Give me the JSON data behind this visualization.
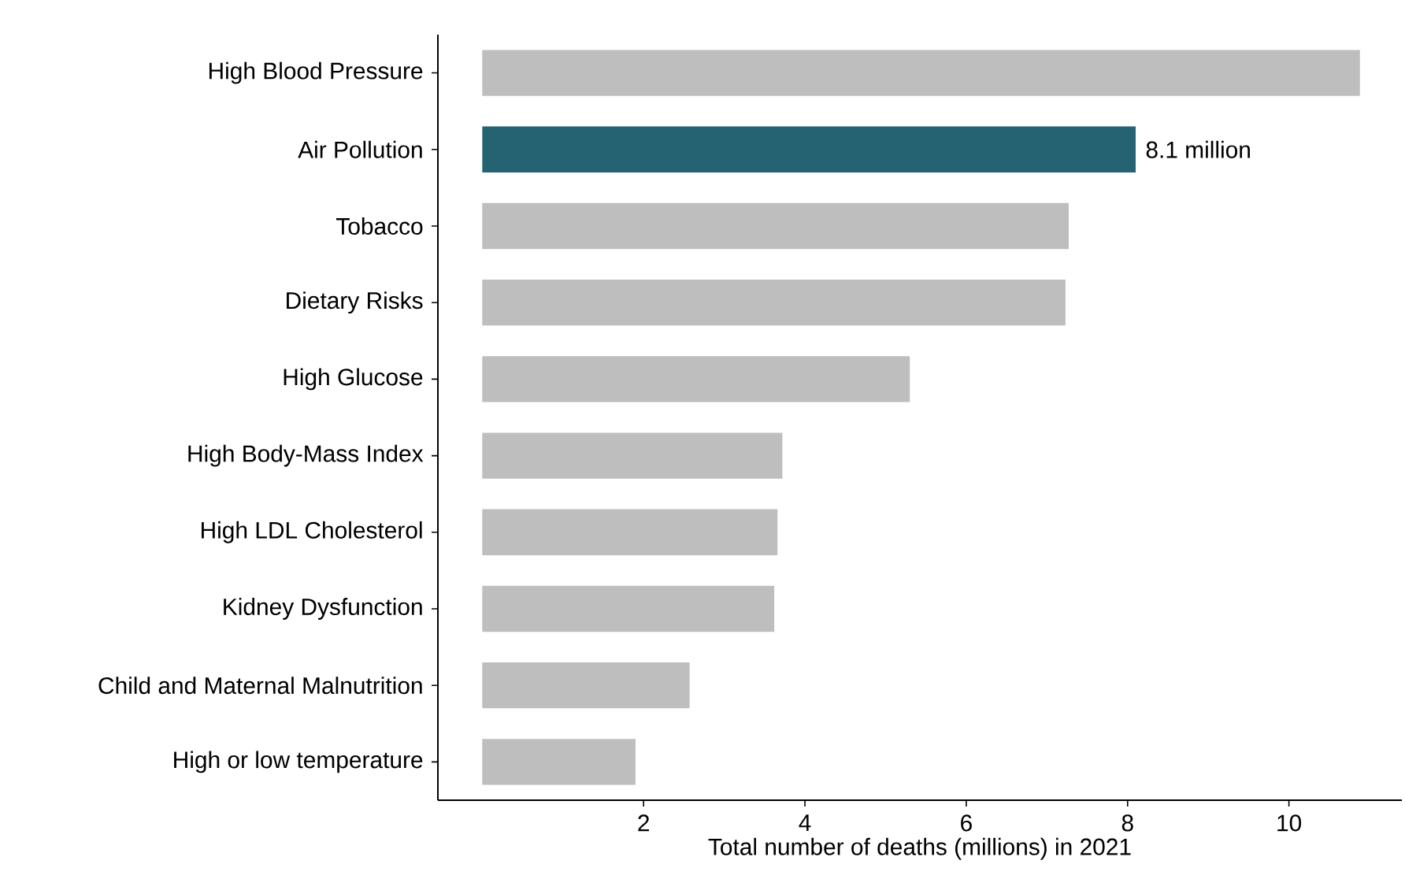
{
  "chart_data": {
    "type": "bar",
    "orientation": "horizontal",
    "categories": [
      "High Blood Pressure",
      "Air Pollution",
      "Tobacco",
      "Dietary Risks",
      "High Glucose",
      "High Body-Mass Index",
      "High LDL Cholesterol",
      "Kidney Dysfunction",
      "Child and Maternal Malnutrition",
      "High or low temperature"
    ],
    "values": [
      10.88,
      8.1,
      7.27,
      7.23,
      5.3,
      3.72,
      3.66,
      3.62,
      2.57,
      1.9
    ],
    "colors": [
      "#bebebe",
      "#256373",
      "#bebebe",
      "#bebebe",
      "#bebebe",
      "#bebebe",
      "#bebebe",
      "#bebebe",
      "#bebebe",
      "#bebebe"
    ],
    "value_labels": [
      null,
      "8.1 million",
      null,
      null,
      null,
      null,
      null,
      null,
      null,
      null
    ],
    "xlabel": "Total number of deaths (millions) in 2021",
    "xlim": [
      -0.55,
      11.4
    ],
    "xticks": [
      2,
      4,
      6,
      8,
      10
    ],
    "grid": false
  }
}
